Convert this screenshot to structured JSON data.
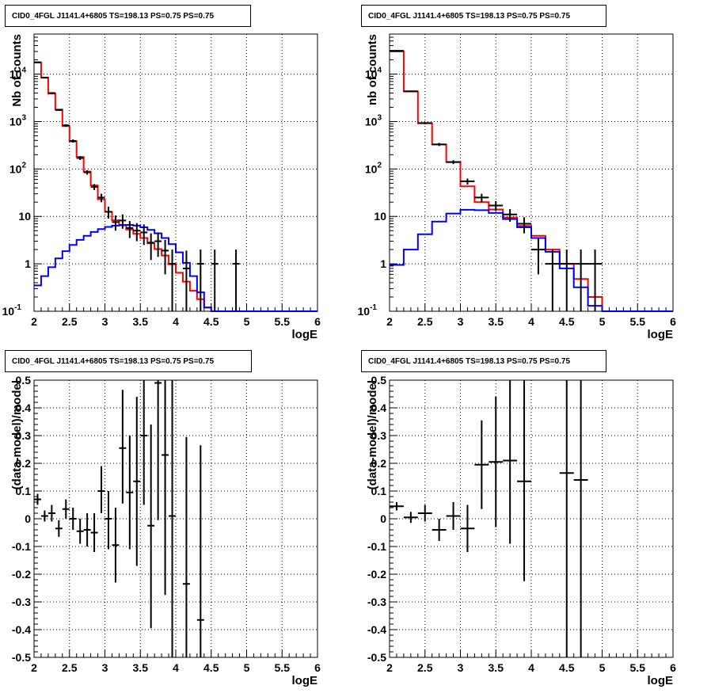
{
  "panels": [
    {
      "title": "CID0_4FGL J1141.4+6805 TS=198.13 PS=0.75 PS=0.75"
    },
    {
      "title": "CID0_4FGL J1141.4+6805 TS=198.13 PS=0.75 PS=0.75"
    },
    {
      "title": "CID0_4FGL J1141.4+6805 TS=198.13 PS=0.75 PS=0.75"
    },
    {
      "title": "CID0_4FGL J1141.4+6805 TS=198.13 PS=0.75 PS=0.75"
    }
  ],
  "colors": {
    "data": "#000000",
    "total_model": "#ff0000",
    "source_model": "#0000ff",
    "grid": "#000000"
  },
  "chart_data": [
    {
      "type": "line",
      "title": "CID0_4FGL J1141.4+6805 TS=198.13 PS=0.75 PS=0.75",
      "xlabel": "logE",
      "ylabel": "Nb of counts",
      "xlim": [
        2,
        6
      ],
      "ylim": [
        0.1,
        70000
      ],
      "yscale": "log",
      "grid": true,
      "xticks": [
        "2",
        "2.5",
        "3",
        "3.5",
        "4",
        "4.5",
        "5",
        "5.5",
        "6"
      ],
      "yticks": [
        {
          "value": 0.1,
          "base": "10",
          "exp": "-1"
        },
        {
          "value": 1,
          "base": "1",
          "exp": ""
        },
        {
          "value": 10,
          "base": "10",
          "exp": ""
        },
        {
          "value": 100,
          "base": "10",
          "exp": "2"
        },
        {
          "value": 1000,
          "base": "10",
          "exp": "3"
        },
        {
          "value": 10000,
          "base": "10",
          "exp": "4"
        }
      ],
      "bin_edges": [
        2,
        2.1,
        2.2,
        2.3,
        2.4,
        2.5,
        2.6,
        2.7,
        2.8,
        2.9,
        3,
        3.1,
        3.2,
        3.3,
        3.4,
        3.5,
        3.6,
        3.7,
        3.8,
        3.9,
        4,
        4.1,
        4.2,
        4.3,
        4.4,
        4.5,
        4.6,
        4.7,
        4.8,
        4.9,
        5,
        5.1,
        5.2,
        5.3,
        5.4,
        5.5,
        5.6,
        5.7,
        5.8,
        5.9,
        6
      ],
      "series": [
        {
          "role": "total_model",
          "values": [
            17500,
            8500,
            3900,
            1800,
            800,
            380,
            180,
            88,
            45,
            23,
            12.5,
            8.3,
            6.5,
            5.3,
            4.3,
            3.5,
            2.7,
            2.05,
            1.5,
            0.98,
            0.65,
            0.42,
            0.27,
            0.18,
            0.12,
            0.1,
            0.1,
            0.1,
            0.1,
            0.1,
            0.1,
            0.1,
            0.1,
            0.1,
            0.1,
            0.1,
            0.1,
            0.1,
            0.1,
            0.1
          ]
        },
        {
          "role": "source_model",
          "values": [
            0.35,
            0.55,
            0.85,
            1.3,
            1.85,
            2.5,
            3.2,
            3.9,
            4.7,
            5.4,
            6.0,
            6.4,
            6.6,
            6.6,
            6.4,
            5.9,
            5.2,
            4.4,
            3.5,
            2.6,
            1.75,
            1.05,
            0.55,
            0.25,
            0.12,
            0.1,
            0.1,
            0.1,
            0.1,
            0.1,
            0.1,
            0.1,
            0.1,
            0.1,
            0.1,
            0.1,
            0.1,
            0.1,
            0.1,
            0.1
          ]
        },
        {
          "role": "data",
          "points": [
            {
              "x": 2.05,
              "y": 17800,
              "lo": 17500,
              "hi": 18100
            },
            {
              "x": 2.15,
              "y": 8400,
              "lo": 8200,
              "hi": 8600
            },
            {
              "x": 2.25,
              "y": 4000,
              "lo": 3850,
              "hi": 4150
            },
            {
              "x": 2.35,
              "y": 1750,
              "lo": 1680,
              "hi": 1820
            },
            {
              "x": 2.45,
              "y": 830,
              "lo": 780,
              "hi": 880
            },
            {
              "x": 2.55,
              "y": 390,
              "lo": 360,
              "hi": 420
            },
            {
              "x": 2.65,
              "y": 170,
              "lo": 155,
              "hi": 185
            },
            {
              "x": 2.75,
              "y": 85,
              "lo": 76,
              "hi": 94
            },
            {
              "x": 2.85,
              "y": 42,
              "lo": 36,
              "hi": 48
            },
            {
              "x": 2.95,
              "y": 25,
              "lo": 20,
              "hi": 30
            },
            {
              "x": 3.05,
              "y": 12.5,
              "lo": 9,
              "hi": 16
            },
            {
              "x": 3.15,
              "y": 7.6,
              "lo": 5,
              "hi": 10.5
            },
            {
              "x": 3.25,
              "y": 8.2,
              "lo": 5.5,
              "hi": 11
            },
            {
              "x": 3.35,
              "y": 5.7,
              "lo": 3.5,
              "hi": 8
            },
            {
              "x": 3.45,
              "y": 5.0,
              "lo": 3,
              "hi": 7.2
            },
            {
              "x": 3.55,
              "y": 4.6,
              "lo": 2.5,
              "hi": 6.8
            },
            {
              "x": 3.65,
              "y": 2.8,
              "lo": 1.2,
              "hi": 4.4
            },
            {
              "x": 3.75,
              "y": 3.0,
              "lo": 1.4,
              "hi": 4.6
            },
            {
              "x": 3.85,
              "y": 1.9,
              "lo": 0.6,
              "hi": 3.2
            },
            {
              "x": 3.95,
              "y": 1.0,
              "lo": 0.1,
              "hi": 2.0
            },
            {
              "x": 4.15,
              "y": 0.8,
              "lo": 0.1,
              "hi": 1.9
            },
            {
              "x": 4.35,
              "y": 1.0,
              "lo": 0.1,
              "hi": 2.0
            },
            {
              "x": 4.55,
              "y": 1.0,
              "lo": 0.1,
              "hi": 2.0
            },
            {
              "x": 4.85,
              "y": 1.0,
              "lo": 0.1,
              "hi": 2.0
            }
          ]
        }
      ]
    },
    {
      "type": "line",
      "title": "CID0_4FGL J1141.4+6805 TS=198.13 PS=0.75 PS=0.75",
      "xlabel": "logE",
      "ylabel": "nb of counts",
      "xlim": [
        2,
        6
      ],
      "ylim": [
        0.1,
        70000
      ],
      "yscale": "log",
      "grid": true,
      "xticks": [
        "2",
        "2.5",
        "3",
        "3.5",
        "4",
        "4.5",
        "5",
        "5.5",
        "6"
      ],
      "yticks": [
        {
          "value": 0.1,
          "base": "10",
          "exp": "-1"
        },
        {
          "value": 1,
          "base": "1",
          "exp": ""
        },
        {
          "value": 10,
          "base": "10",
          "exp": ""
        },
        {
          "value": 100,
          "base": "10",
          "exp": "2"
        },
        {
          "value": 1000,
          "base": "10",
          "exp": "3"
        },
        {
          "value": 10000,
          "base": "10",
          "exp": "4"
        }
      ],
      "bin_edges": [
        2,
        2.2,
        2.4,
        2.6,
        2.8,
        3,
        3.2,
        3.4,
        3.6,
        3.8,
        4,
        4.2,
        4.4,
        4.6,
        4.8,
        5,
        5.2,
        5.4,
        5.6,
        5.8,
        6
      ],
      "series": [
        {
          "role": "total_model",
          "values": [
            30000,
            4300,
            920,
            330,
            140,
            43,
            20,
            14,
            9.5,
            6.3,
            3.9,
            2.0,
            1.0,
            0.48,
            0.2,
            0.1,
            0.1,
            0.1,
            0.1,
            0.1
          ]
        },
        {
          "role": "source_model",
          "values": [
            0.95,
            2.0,
            4.2,
            7.8,
            11.5,
            13.8,
            13.5,
            11.8,
            8.8,
            5.9,
            3.5,
            1.8,
            0.8,
            0.32,
            0.13,
            0.1,
            0.1,
            0.1,
            0.1,
            0.1
          ]
        },
        {
          "role": "data",
          "points": [
            {
              "x": 2.1,
              "y": 31000,
              "lo": 30600,
              "hi": 31400
            },
            {
              "x": 2.3,
              "y": 4350,
              "lo": 4200,
              "hi": 4500
            },
            {
              "x": 2.5,
              "y": 930,
              "lo": 880,
              "hi": 980
            },
            {
              "x": 2.7,
              "y": 330,
              "lo": 305,
              "hi": 355
            },
            {
              "x": 2.9,
              "y": 140,
              "lo": 127,
              "hi": 153
            },
            {
              "x": 3.1,
              "y": 55,
              "lo": 47,
              "hi": 63
            },
            {
              "x": 3.3,
              "y": 25,
              "lo": 20,
              "hi": 30
            },
            {
              "x": 3.5,
              "y": 17,
              "lo": 13,
              "hi": 21
            },
            {
              "x": 3.7,
              "y": 11,
              "lo": 7.7,
              "hi": 14.3
            },
            {
              "x": 3.9,
              "y": 7.0,
              "lo": 4.4,
              "hi": 9.6
            },
            {
              "x": 4.1,
              "y": 2.0,
              "lo": 0.6,
              "hi": 3.4
            },
            {
              "x": 4.3,
              "y": 1.0,
              "lo": 0.1,
              "hi": 2.0
            },
            {
              "x": 4.5,
              "y": 1.0,
              "lo": 0.1,
              "hi": 2.0
            },
            {
              "x": 4.7,
              "y": 1.0,
              "lo": 0.1,
              "hi": 2.0
            },
            {
              "x": 4.9,
              "y": 1.0,
              "lo": 0.1,
              "hi": 2.0
            }
          ]
        }
      ]
    },
    {
      "type": "scatter",
      "title": "CID0_4FGL J1141.4+6805 TS=198.13 PS=0.75 PS=0.75",
      "xlabel": "logE",
      "ylabel": "(data-model)/model",
      "xlim": [
        2,
        6
      ],
      "ylim": [
        -0.5,
        0.5
      ],
      "grid": true,
      "xticks": [
        "2",
        "2.5",
        "3",
        "3.5",
        "4",
        "4.5",
        "5",
        "5.5",
        "6"
      ],
      "yticks": [
        "-0.5",
        "-0.4",
        "-0.3",
        "-0.2",
        "-0.1",
        "0",
        "0.1",
        "0.2",
        "0.3",
        "0.4",
        "0.5"
      ],
      "xerr": 0.05,
      "points": [
        {
          "x": 2.05,
          "y": 0.07,
          "lo": 0.05,
          "hi": 0.09
        },
        {
          "x": 2.15,
          "y": 0.01,
          "lo": -0.01,
          "hi": 0.03
        },
        {
          "x": 2.25,
          "y": 0.02,
          "lo": -0.01,
          "hi": 0.05
        },
        {
          "x": 2.35,
          "y": -0.035,
          "lo": -0.065,
          "hi": -0.005
        },
        {
          "x": 2.45,
          "y": 0.035,
          "lo": 0.0,
          "hi": 0.07
        },
        {
          "x": 2.55,
          "y": 0.0,
          "lo": -0.04,
          "hi": 0.04
        },
        {
          "x": 2.65,
          "y": -0.045,
          "lo": -0.09,
          "hi": 0.0
        },
        {
          "x": 2.75,
          "y": -0.04,
          "lo": -0.1,
          "hi": 0.02
        },
        {
          "x": 2.85,
          "y": -0.05,
          "lo": -0.12,
          "hi": 0.02
        },
        {
          "x": 2.95,
          "y": 0.1,
          "lo": 0.02,
          "hi": 0.19
        },
        {
          "x": 3.05,
          "y": 0.0,
          "lo": -0.11,
          "hi": 0.1
        },
        {
          "x": 3.15,
          "y": -0.095,
          "lo": -0.23,
          "hi": 0.04
        },
        {
          "x": 3.25,
          "y": 0.255,
          "lo": 0.055,
          "hi": 0.465
        },
        {
          "x": 3.35,
          "y": 0.095,
          "lo": -0.11,
          "hi": 0.3
        },
        {
          "x": 3.45,
          "y": 0.135,
          "lo": -0.17,
          "hi": 0.44
        },
        {
          "x": 3.55,
          "y": 0.3,
          "lo": 0.05,
          "hi": 0.5
        },
        {
          "x": 3.65,
          "y": -0.025,
          "lo": -0.395,
          "hi": 0.34
        },
        {
          "x": 3.75,
          "y": 0.49,
          "lo": -0.005,
          "hi": 0.5
        },
        {
          "x": 3.85,
          "y": 0.23,
          "lo": -0.275,
          "hi": 0.5
        },
        {
          "x": 3.95,
          "y": 0.01,
          "lo": -0.5,
          "hi": 0.5
        },
        {
          "x": 4.15,
          "y": -0.235,
          "lo": -0.5,
          "hi": 0.295
        },
        {
          "x": 4.35,
          "y": -0.365,
          "lo": -0.5,
          "hi": 0.265
        }
      ]
    },
    {
      "type": "scatter",
      "title": "CID0_4FGL J1141.4+6805 TS=198.13 PS=0.75 PS=0.75",
      "xlabel": "logE",
      "ylabel": "(data-model)/model",
      "xlim": [
        2,
        6
      ],
      "ylim": [
        -0.5,
        0.5
      ],
      "grid": true,
      "xticks": [
        "2",
        "2.5",
        "3",
        "3.5",
        "4",
        "4.5",
        "5",
        "5.5",
        "6"
      ],
      "yticks": [
        "-0.5",
        "-0.4",
        "-0.3",
        "-0.2",
        "-0.1",
        "0",
        "0.1",
        "0.2",
        "0.3",
        "0.4",
        "0.5"
      ],
      "xerr": 0.1,
      "points": [
        {
          "x": 2.1,
          "y": 0.045,
          "lo": 0.03,
          "hi": 0.06
        },
        {
          "x": 2.3,
          "y": 0.005,
          "lo": -0.015,
          "hi": 0.025
        },
        {
          "x": 2.5,
          "y": 0.02,
          "lo": -0.01,
          "hi": 0.05
        },
        {
          "x": 2.7,
          "y": -0.04,
          "lo": -0.08,
          "hi": 0.0
        },
        {
          "x": 2.9,
          "y": 0.01,
          "lo": -0.04,
          "hi": 0.06
        },
        {
          "x": 3.1,
          "y": -0.035,
          "lo": -0.12,
          "hi": 0.05
        },
        {
          "x": 3.3,
          "y": 0.195,
          "lo": 0.035,
          "hi": 0.355
        },
        {
          "x": 3.5,
          "y": 0.205,
          "lo": -0.03,
          "hi": 0.44
        },
        {
          "x": 3.7,
          "y": 0.21,
          "lo": -0.09,
          "hi": 0.5
        },
        {
          "x": 3.9,
          "y": 0.135,
          "lo": -0.225,
          "hi": 0.5
        },
        {
          "x": 4.5,
          "y": 0.165,
          "lo": -0.5,
          "hi": 0.5
        },
        {
          "x": 4.7,
          "y": 0.14,
          "lo": -0.5,
          "hi": 0.5
        }
      ]
    }
  ]
}
